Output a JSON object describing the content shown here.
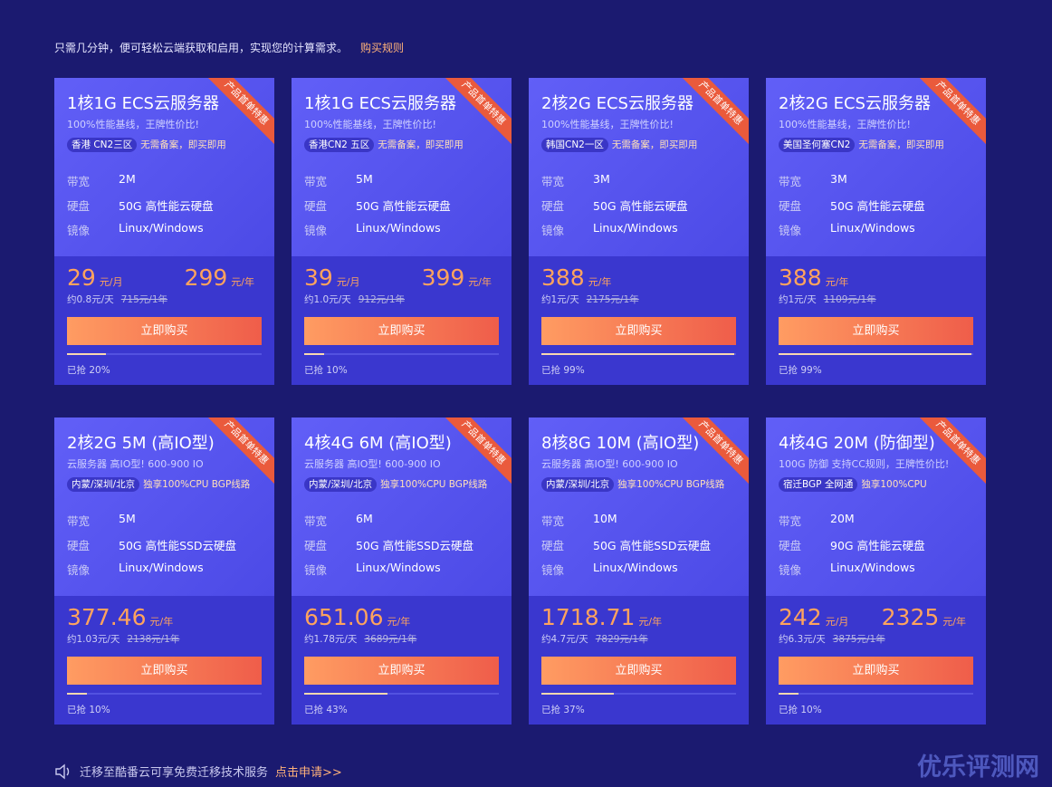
{
  "header": {
    "text": "只需几分钟，便可轻松云端获取和启用，实现您的计算需求。",
    "link": "购买规则"
  },
  "cards": [
    {
      "ribbon": "产品首单特惠",
      "title": "1核1G ECS云服务器",
      "subtitle": "100%性能基线，王牌性价比!",
      "tags": [
        "香港 CN2三区",
        "无需备案，即买即用"
      ],
      "specs": [
        [
          "带宽",
          "2M"
        ],
        [
          "硬盘",
          "50G 高性能云硬盘"
        ],
        [
          "镜像",
          "Linux/Windows"
        ]
      ],
      "prices": [
        {
          "amount": "29",
          "unit": "元/月"
        },
        {
          "amount": "299",
          "unit": "元/年"
        }
      ],
      "per_day": "约0.8元/天",
      "original": "715元/1年",
      "button": "立即购买",
      "progress": 20,
      "progress_label": "已抢 20%"
    },
    {
      "ribbon": "产品首单特惠",
      "title": "1核1G ECS云服务器",
      "subtitle": "100%性能基线，王牌性价比!",
      "tags": [
        "香港CN2 五区",
        "无需备案，即买即用"
      ],
      "specs": [
        [
          "带宽",
          "5M"
        ],
        [
          "硬盘",
          "50G 高性能云硬盘"
        ],
        [
          "镜像",
          "Linux/Windows"
        ]
      ],
      "prices": [
        {
          "amount": "39",
          "unit": "元/月"
        },
        {
          "amount": "399",
          "unit": "元/年"
        }
      ],
      "per_day": "约1.0元/天",
      "original": "912元/1年",
      "button": "立即购买",
      "progress": 10,
      "progress_label": "已抢 10%"
    },
    {
      "ribbon": "产品首单特惠",
      "title": "2核2G ECS云服务器",
      "subtitle": "100%性能基线，王牌性价比!",
      "tags": [
        "韩国CN2一区",
        "无需备案，即买即用"
      ],
      "specs": [
        [
          "带宽",
          "3M"
        ],
        [
          "硬盘",
          "50G 高性能云硬盘"
        ],
        [
          "镜像",
          "Linux/Windows"
        ]
      ],
      "prices": [
        {
          "amount": "388",
          "unit": "元/年"
        }
      ],
      "per_day": "约1元/天",
      "original": "2175元/1年",
      "button": "立即购买",
      "progress": 99,
      "progress_label": "已抢 99%"
    },
    {
      "ribbon": "产品首单特惠",
      "title": "2核2G ECS云服务器",
      "subtitle": "100%性能基线，王牌性价比!",
      "tags": [
        "美国圣何塞CN2",
        "无需备案，即买即用"
      ],
      "specs": [
        [
          "带宽",
          "3M"
        ],
        [
          "硬盘",
          "50G 高性能云硬盘"
        ],
        [
          "镜像",
          "Linux/Windows"
        ]
      ],
      "prices": [
        {
          "amount": "388",
          "unit": "元/年"
        }
      ],
      "per_day": "约1元/天",
      "original": "1109元/1年",
      "button": "立即购买",
      "progress": 99,
      "progress_label": "已抢 99%"
    },
    {
      "ribbon": "产品首单特惠",
      "title": "2核2G 5M (高IO型)",
      "subtitle": "云服务器 高IO型! 600-900 IO",
      "tags": [
        "内蒙/深圳/北京",
        "独享100%CPU BGP线路"
      ],
      "specs": [
        [
          "带宽",
          "5M"
        ],
        [
          "硬盘",
          "50G 高性能SSD云硬盘"
        ],
        [
          "镜像",
          "Linux/Windows"
        ]
      ],
      "prices": [
        {
          "amount": "377.46",
          "unit": "元/年"
        }
      ],
      "per_day": "约1.03元/天",
      "original": "2138元/1年",
      "button": "立即购买",
      "progress": 10,
      "progress_label": "已抢 10%"
    },
    {
      "ribbon": "产品首单特惠",
      "title": "4核4G 6M (高IO型)",
      "subtitle": "云服务器 高IO型! 600-900 IO",
      "tags": [
        "内蒙/深圳/北京",
        "独享100%CPU BGP线路"
      ],
      "specs": [
        [
          "带宽",
          "6M"
        ],
        [
          "硬盘",
          "50G 高性能SSD云硬盘"
        ],
        [
          "镜像",
          "Linux/Windows"
        ]
      ],
      "prices": [
        {
          "amount": "651.06",
          "unit": "元/年"
        }
      ],
      "per_day": "约1.78元/天",
      "original": "3689元/1年",
      "button": "立即购买",
      "progress": 43,
      "progress_label": "已抢 43%"
    },
    {
      "ribbon": "产品首单特惠",
      "title": "8核8G 10M (高IO型)",
      "subtitle": "云服务器 高IO型! 600-900 IO",
      "tags": [
        "内蒙/深圳/北京",
        "独享100%CPU BGP线路"
      ],
      "specs": [
        [
          "带宽",
          "10M"
        ],
        [
          "硬盘",
          "50G 高性能SSD云硬盘"
        ],
        [
          "镜像",
          "Linux/Windows"
        ]
      ],
      "prices": [
        {
          "amount": "1718.71",
          "unit": "元/年"
        }
      ],
      "per_day": "约4.7元/天",
      "original": "7829元/1年",
      "button": "立即购买",
      "progress": 37,
      "progress_label": "已抢 37%"
    },
    {
      "ribbon": "产品首单特惠",
      "title": "4核4G 20M (防御型)",
      "subtitle": "100G 防御 支持CC规则，王牌性价比!",
      "tags": [
        "宿迁BGP 全网通",
        "独享100%CPU"
      ],
      "specs": [
        [
          "带宽",
          "20M"
        ],
        [
          "硬盘",
          "90G 高性能云硬盘"
        ],
        [
          "镜像",
          "Linux/Windows"
        ]
      ],
      "prices": [
        {
          "amount": "242",
          "unit": "元/月"
        },
        {
          "amount": "2325",
          "unit": "元/年"
        }
      ],
      "per_day": "约6.3元/天",
      "original": "3875元/1年",
      "button": "立即购买",
      "progress": 10,
      "progress_label": "已抢 10%"
    }
  ],
  "footer": {
    "text": "迁移至酷番云可享免费迁移技术服务",
    "link": "点击申请>>"
  },
  "watermark": "优乐评测网"
}
